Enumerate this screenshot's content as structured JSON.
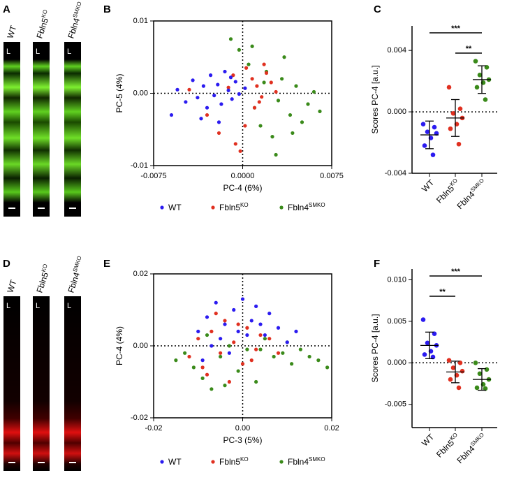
{
  "images": [
    {
      "letter": "A",
      "lumen": "L",
      "labels": [
        {
          "name": "WT"
        },
        {
          "name": "Fbln5",
          "sup": "KO"
        },
        {
          "name": "Fbln4",
          "sup": "SMKO"
        }
      ]
    },
    {
      "letter": "D",
      "lumen": "L",
      "labels": [
        {
          "name": "WT"
        },
        {
          "name": "Fbln5",
          "sup": "KO"
        },
        {
          "name": "Fbln4",
          "sup": "SMKO"
        }
      ]
    }
  ],
  "chart_data": [
    {
      "type": "scatter",
      "letter": "B",
      "x_label": "PC-4 (6%)",
      "y_label": "PC-5 (4%)",
      "xlim": [
        -0.0075,
        0.0075
      ],
      "xticks": [
        -0.0075,
        {
          "value": 0,
          "label": "0.0000"
        },
        0.0075
      ],
      "ylim": [
        -0.01,
        0.01
      ],
      "yticks": [
        -0.01,
        {
          "value": 0,
          "label": "0.00"
        },
        0.01
      ],
      "series": [
        {
          "name": "WT",
          "color": "#2b1bf0",
          "x": [
            -0.0055,
            -0.0048,
            -0.0042,
            -0.0038,
            -0.0033,
            -0.003,
            -0.0027,
            -0.0024,
            -0.0021,
            -0.0018,
            -0.0015,
            -0.0012,
            -0.0009,
            -0.0006,
            -0.0003,
            0.0002,
            -0.0035,
            -0.002,
            -0.006,
            -0.001
          ],
          "values": [
            0.0005,
            -0.0012,
            0.0018,
            -0.0006,
            0.001,
            -0.002,
            0.0025,
            -0.0003,
            0.0012,
            -0.0015,
            0.003,
            0.0004,
            -0.0008,
            0.0016,
            -0.0001,
            0.0007,
            -0.0035,
            -0.004,
            -0.003,
            0.0022
          ]
        },
        {
          "name": "Fbln5",
          "sup": "KO",
          "color": "#e03020",
          "x": [
            -0.0045,
            -0.003,
            -0.002,
            -0.0012,
            -0.0006,
            -0.0002,
            0.0003,
            0.0008,
            0.0012,
            0.0016,
            0.002,
            0.0024,
            0.0028,
            0.001,
            0.0002,
            -0.0008,
            0.0014,
            0.0018
          ],
          "values": [
            0.0005,
            -0.003,
            -0.0055,
            0.0008,
            -0.007,
            -0.008,
            0.0035,
            0.002,
            0.001,
            -0.0005,
            0.0028,
            0.0015,
            0.0002,
            -0.002,
            -0.0045,
            0.0025,
            -0.0012,
            0.004
          ]
        },
        {
          "name": "Fbln4",
          "sup": "SMKO",
          "color": "#3a8a1a",
          "x": [
            -0.001,
            -0.0003,
            0.0005,
            0.001,
            0.0015,
            0.002,
            0.0025,
            0.003,
            0.0035,
            0.004,
            0.0045,
            0.005,
            0.0055,
            0.006,
            0.0065,
            0.0028,
            0.0008,
            0.0033,
            0.0042,
            0.0018
          ],
          "values": [
            0.0075,
            0.006,
            0.004,
            -0.002,
            -0.0045,
            0.003,
            -0.006,
            -0.001,
            0.005,
            -0.003,
            0.001,
            -0.004,
            -0.0015,
            0.0002,
            -0.0025,
            -0.0085,
            0.0065,
            0.002,
            -0.0055,
            0.0015
          ]
        }
      ]
    },
    {
      "type": "dotplot",
      "letter": "C",
      "y_label": "Scores PC-4 [a.u.]",
      "ylim": [
        -0.004,
        0.0056
      ],
      "yticks": [
        -0.004,
        {
          "value": 0,
          "label": "0.000"
        },
        0.004
      ],
      "categories": [
        {
          "name": "WT"
        },
        {
          "name": "Fbln5",
          "sup": "KO"
        },
        {
          "name": "Fbln4",
          "sup": "SMKO"
        }
      ],
      "groups": [
        {
          "color": "#2b1bf0",
          "values": [
            -0.0008,
            -0.001,
            -0.0013,
            -0.0014,
            -0.0017,
            -0.0022,
            -0.0028
          ],
          "mean": -0.0015,
          "sd": 0.0009
        },
        {
          "color": "#e03020",
          "values": [
            0.0016,
            0.0002,
            -0.0001,
            -0.0004,
            -0.0008,
            -0.0011,
            -0.0021
          ],
          "mean": -0.0004,
          "sd": 0.0012
        },
        {
          "color": "#3a8a1a",
          "values": [
            0.0033,
            0.0029,
            0.0024,
            0.0021,
            0.0019,
            0.0016,
            0.0008
          ],
          "mean": 0.0021,
          "sd": 0.0009
        }
      ],
      "significance": [
        {
          "pair": [
            0,
            2
          ],
          "label": "***"
        },
        {
          "pair": [
            1,
            2
          ],
          "label": "**"
        }
      ]
    },
    {
      "type": "scatter",
      "letter": "E",
      "x_label": "PC-3 (5%)",
      "y_label": "PC-4 (4%)",
      "xlim": [
        -0.02,
        0.02
      ],
      "xticks": [
        -0.02,
        {
          "value": 0,
          "label": "0.00"
        },
        0.02
      ],
      "ylim": [
        -0.02,
        0.02
      ],
      "yticks": [
        -0.02,
        {
          "value": 0,
          "label": "0.00"
        },
        0.02
      ],
      "series": [
        {
          "name": "WT",
          "color": "#2b1bf0",
          "x": [
            -0.01,
            -0.008,
            -0.006,
            -0.005,
            -0.004,
            -0.002,
            -0.001,
            0.0,
            0.002,
            0.003,
            0.005,
            0.006,
            0.008,
            0.01,
            0.012,
            -0.007,
            -0.003,
            0.001,
            0.004,
            -0.009
          ],
          "values": [
            0.004,
            0.008,
            0.012,
            0.002,
            0.006,
            0.01,
            0.004,
            0.013,
            0.007,
            0.011,
            0.003,
            0.009,
            0.005,
            0.001,
            0.004,
            0.0,
            -0.002,
            0.003,
            0.006,
            -0.004
          ]
        },
        {
          "name": "Fbln5",
          "sup": "KO",
          "color": "#e03020",
          "x": [
            -0.012,
            -0.01,
            -0.008,
            -0.007,
            -0.005,
            -0.004,
            -0.003,
            -0.002,
            0.0,
            0.001,
            0.003,
            0.004,
            0.006,
            0.008,
            -0.006,
            -0.009,
            0.002,
            -0.001
          ],
          "values": [
            -0.003,
            0.002,
            -0.008,
            0.004,
            -0.002,
            0.007,
            -0.01,
            0.001,
            -0.005,
            0.005,
            -0.001,
            0.003,
            0.002,
            -0.002,
            0.009,
            -0.006,
            -0.004,
            0.006
          ]
        },
        {
          "name": "Fbln4",
          "sup": "SMKO",
          "color": "#3a8a1a",
          "x": [
            -0.015,
            -0.013,
            -0.011,
            -0.009,
            -0.007,
            -0.005,
            -0.003,
            -0.001,
            0.001,
            0.003,
            0.005,
            0.007,
            0.009,
            0.011,
            0.013,
            0.015,
            0.017,
            0.019,
            -0.008,
            0.004,
            0.01,
            -0.004
          ],
          "values": [
            -0.004,
            -0.002,
            -0.006,
            -0.009,
            -0.012,
            -0.003,
            0.0,
            -0.007,
            -0.001,
            -0.01,
            0.002,
            -0.003,
            -0.002,
            -0.005,
            -0.001,
            -0.003,
            -0.004,
            -0.006,
            0.003,
            -0.001,
            0.001,
            -0.011
          ]
        }
      ]
    },
    {
      "type": "dotplot",
      "letter": "F",
      "y_label": "Scores PC-4 [a.u.]",
      "ylim": [
        -0.0078,
        0.0113
      ],
      "yticks": [
        -0.005,
        {
          "value": 0,
          "label": "0.000"
        },
        0.005,
        {
          "value": 0.01,
          "label": "0.010"
        }
      ],
      "categories": [
        {
          "name": "WT"
        },
        {
          "name": "Fbln5",
          "sup": "KO"
        },
        {
          "name": "Fbln4",
          "sup": "SMKO"
        }
      ],
      "groups": [
        {
          "color": "#2b1bf0",
          "values": [
            0.0052,
            0.0035,
            0.0024,
            0.0021,
            0.0014,
            0.001,
            0.0007
          ],
          "mean": 0.0021,
          "sd": 0.0016
        },
        {
          "color": "#e03020",
          "values": [
            0.0003,
            0.0,
            -0.0006,
            -0.001,
            -0.0015,
            -0.002,
            -0.003
          ],
          "mean": -0.0011,
          "sd": 0.0013
        },
        {
          "color": "#3a8a1a",
          "values": [
            0.0,
            -0.0008,
            -0.0013,
            -0.002,
            -0.0026,
            -0.003,
            -0.0031
          ],
          "mean": -0.002,
          "sd": 0.0013
        }
      ],
      "significance": [
        {
          "pair": [
            0,
            2
          ],
          "label": "***"
        },
        {
          "pair": [
            0,
            1
          ],
          "label": "**"
        }
      ]
    }
  ]
}
